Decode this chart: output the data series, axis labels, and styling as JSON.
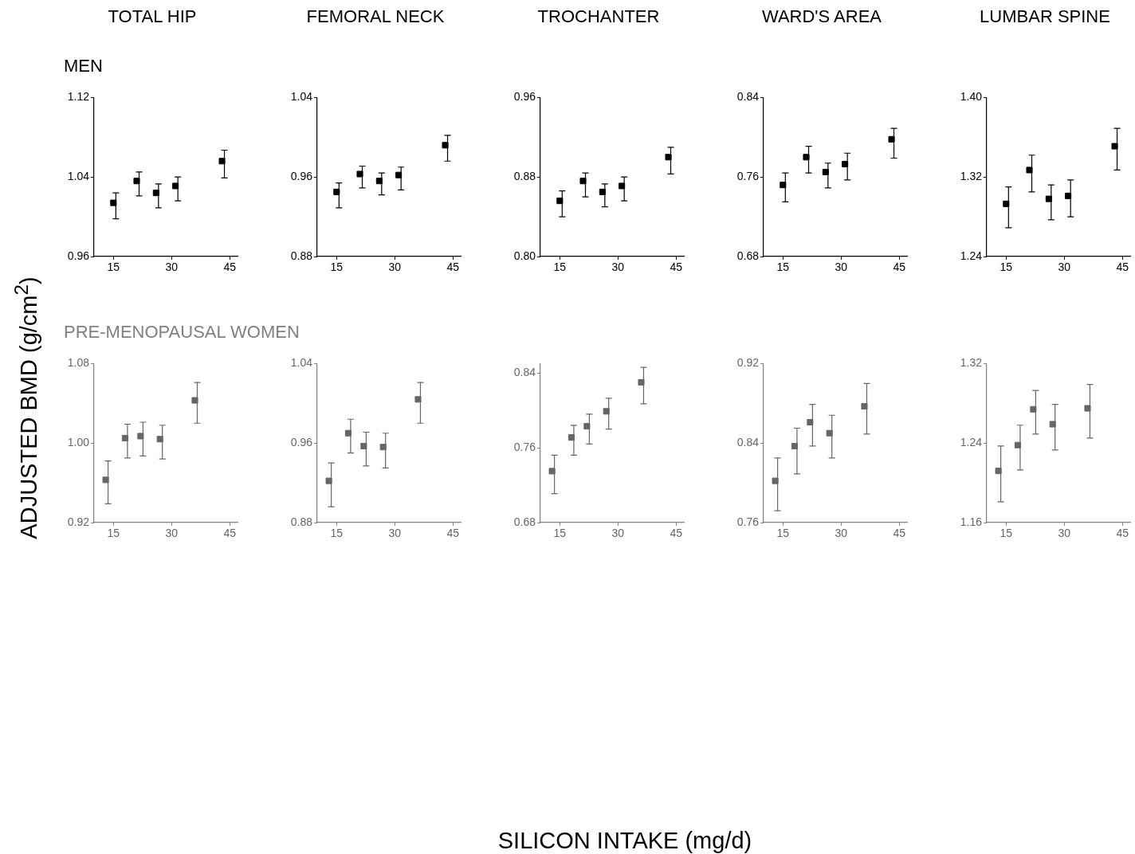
{
  "chart_data": [
    {
      "type": "scatter",
      "title": "TOTAL HIP",
      "subtitle": "MEN",
      "ylabel": "ADJUSTED BMD (g/cm$^{2}$)",
      "xlim": [
        10,
        47
      ],
      "xticks": [
        15,
        30,
        45
      ],
      "ylim": [
        0.96,
        1.12
      ],
      "yticks": [
        0.96,
        1.04,
        1.12
      ],
      "grid": false,
      "legend": false,
      "marker": "square",
      "series": [
        {
          "color": "#000000",
          "x": [
            15,
            21,
            26,
            31,
            43
          ],
          "values": [
            1.014,
            1.036,
            1.024,
            1.031,
            1.056
          ],
          "errors": [
            [
              0.998,
              1.024
            ],
            [
              1.021,
              1.045
            ],
            [
              1.009,
              1.033
            ],
            [
              1.016,
              1.04
            ],
            [
              1.039,
              1.067
            ]
          ]
        }
      ]
    },
    {
      "type": "scatter",
      "title": "FEMORAL NECK",
      "xlim": [
        10,
        47
      ],
      "xticks": [
        15,
        30,
        45
      ],
      "ylim": [
        0.88,
        1.04
      ],
      "yticks": [
        0.88,
        0.96,
        1.04
      ],
      "grid": false,
      "legend": false,
      "marker": "square",
      "series": [
        {
          "color": "#000000",
          "x": [
            15,
            21,
            26,
            31,
            43
          ],
          "values": [
            0.945,
            0.963,
            0.956,
            0.962,
            0.992
          ],
          "errors": [
            [
              0.929,
              0.954
            ],
            [
              0.949,
              0.971
            ],
            [
              0.942,
              0.964
            ],
            [
              0.947,
              0.97
            ],
            [
              0.976,
              1.002
            ]
          ]
        }
      ]
    },
    {
      "type": "scatter",
      "title": "TROCHANTER",
      "xlim": [
        10,
        47
      ],
      "xticks": [
        15,
        30,
        45
      ],
      "ylim": [
        0.8,
        0.96
      ],
      "yticks": [
        {
          "value": 0.8,
          "label": "0.80"
        },
        0.88,
        0.96
      ],
      "grid": false,
      "legend": false,
      "marker": "square",
      "series": [
        {
          "color": "#000000",
          "x": [
            15,
            21,
            26,
            31,
            43
          ],
          "values": [
            0.856,
            0.876,
            0.865,
            0.871,
            0.9
          ],
          "errors": [
            [
              0.84,
              0.866
            ],
            [
              0.86,
              0.884
            ],
            [
              0.85,
              0.873
            ],
            [
              0.856,
              0.88
            ],
            [
              0.883,
              0.91
            ]
          ]
        }
      ]
    },
    {
      "type": "scatter",
      "title": "WARD'S AREA",
      "xlim": [
        10,
        47
      ],
      "xticks": [
        15,
        30,
        45
      ],
      "ylim": [
        0.68,
        0.84
      ],
      "yticks": [
        0.68,
        0.76,
        0.84
      ],
      "grid": false,
      "legend": false,
      "marker": "square",
      "series": [
        {
          "color": "#000000",
          "x": [
            15,
            21,
            26,
            31,
            43
          ],
          "values": [
            0.752,
            0.78,
            0.765,
            0.773,
            0.798
          ],
          "errors": [
            [
              0.735,
              0.764
            ],
            [
              0.764,
              0.791
            ],
            [
              0.749,
              0.774
            ],
            [
              0.757,
              0.784
            ],
            [
              0.779,
              0.809
            ]
          ]
        }
      ]
    },
    {
      "type": "scatter",
      "title": "LUMBAR SPINE",
      "xlim": [
        10,
        47
      ],
      "xticks": [
        15,
        30,
        45
      ],
      "ylim": [
        1.24,
        1.4
      ],
      "yticks": [
        1.24,
        1.32,
        {
          "value": 1.4,
          "label": "1.40"
        }
      ],
      "grid": false,
      "legend": false,
      "marker": "square",
      "series": [
        {
          "color": "#000000",
          "x": [
            15,
            21,
            26,
            31,
            43
          ],
          "values": [
            1.293,
            1.327,
            1.298,
            1.301,
            1.351
          ],
          "errors": [
            [
              1.269,
              1.31
            ],
            [
              1.305,
              1.342
            ],
            [
              1.277,
              1.312
            ],
            [
              1.28,
              1.317
            ],
            [
              1.327,
              1.369
            ]
          ]
        }
      ]
    },
    {
      "type": "scatter",
      "subtitle": "PRE-MENOPAUSAL WOMEN",
      "xlim": [
        10,
        47
      ],
      "xticks": [
        15,
        30,
        45
      ],
      "ylim": [
        0.92,
        1.08
      ],
      "yticks": [
        0.92,
        {
          "value": 1,
          "label": "1.00"
        },
        1.08
      ],
      "grid": false,
      "legend": false,
      "marker": "square",
      "series": [
        {
          "color": "#666666",
          "x": [
            13,
            18,
            22,
            27,
            36
          ],
          "values": [
            0.963,
            1.005,
            1.007,
            1.004,
            1.043
          ],
          "errors": [
            [
              0.939,
              0.982
            ],
            [
              0.985,
              1.019
            ],
            [
              0.987,
              1.021
            ],
            [
              0.984,
              1.018
            ],
            [
              1.02,
              1.061
            ]
          ]
        }
      ]
    },
    {
      "type": "scatter",
      "xlim": [
        10,
        47
      ],
      "xticks": [
        15,
        30,
        45
      ],
      "ylim": [
        0.88,
        1.04
      ],
      "yticks": [
        0.88,
        0.96,
        1.04
      ],
      "grid": false,
      "legend": false,
      "marker": "square",
      "series": [
        {
          "color": "#666666",
          "x": [
            13,
            18,
            22,
            27,
            36
          ],
          "values": [
            0.922,
            0.97,
            0.957,
            0.956,
            1.004
          ],
          "errors": [
            [
              0.896,
              0.94
            ],
            [
              0.95,
              0.984
            ],
            [
              0.937,
              0.971
            ],
            [
              0.935,
              0.97
            ],
            [
              0.98,
              1.021
            ]
          ]
        }
      ]
    },
    {
      "type": "scatter",
      "xlabel": "SILICON INTAKE (mg/d)",
      "xlim": [
        10,
        47
      ],
      "xticks": [
        15,
        30,
        45
      ],
      "ylim": [
        0.68,
        0.85
      ],
      "yticks": [
        0.68,
        0.76,
        0.84
      ],
      "grid": false,
      "legend": false,
      "marker": "square",
      "series": [
        {
          "color": "#666666",
          "x": [
            13,
            18,
            22,
            27,
            36
          ],
          "values": [
            0.735,
            0.771,
            0.783,
            0.799,
            0.83
          ],
          "errors": [
            [
              0.711,
              0.752
            ],
            [
              0.752,
              0.784
            ],
            [
              0.764,
              0.796
            ],
            [
              0.78,
              0.813
            ],
            [
              0.807,
              0.846
            ]
          ]
        }
      ]
    },
    {
      "type": "scatter",
      "xlim": [
        10,
        47
      ],
      "xticks": [
        15,
        30,
        45
      ],
      "ylim": [
        0.76,
        0.92
      ],
      "yticks": [
        0.76,
        0.84,
        0.92
      ],
      "grid": false,
      "legend": false,
      "marker": "square",
      "series": [
        {
          "color": "#666666",
          "x": [
            13,
            18,
            22,
            27,
            36
          ],
          "values": [
            0.802,
            0.837,
            0.861,
            0.85,
            0.877
          ],
          "errors": [
            [
              0.772,
              0.825
            ],
            [
              0.809,
              0.855
            ],
            [
              0.837,
              0.879
            ],
            [
              0.825,
              0.868
            ],
            [
              0.849,
              0.9
            ]
          ]
        }
      ]
    },
    {
      "type": "scatter",
      "xlim": [
        10,
        47
      ],
      "xticks": [
        15,
        30,
        45
      ],
      "ylim": [
        1.16,
        1.32
      ],
      "yticks": [
        1.16,
        1.24,
        1.32
      ],
      "grid": false,
      "legend": false,
      "marker": "square",
      "series": [
        {
          "color": "#666666",
          "x": [
            13,
            18,
            22,
            27,
            36
          ],
          "values": [
            1.212,
            1.238,
            1.274,
            1.259,
            1.275
          ],
          "errors": [
            [
              1.181,
              1.237
            ],
            [
              1.213,
              1.258
            ],
            [
              1.249,
              1.293
            ],
            [
              1.233,
              1.279
            ],
            [
              1.245,
              1.299
            ]
          ]
        }
      ]
    }
  ]
}
